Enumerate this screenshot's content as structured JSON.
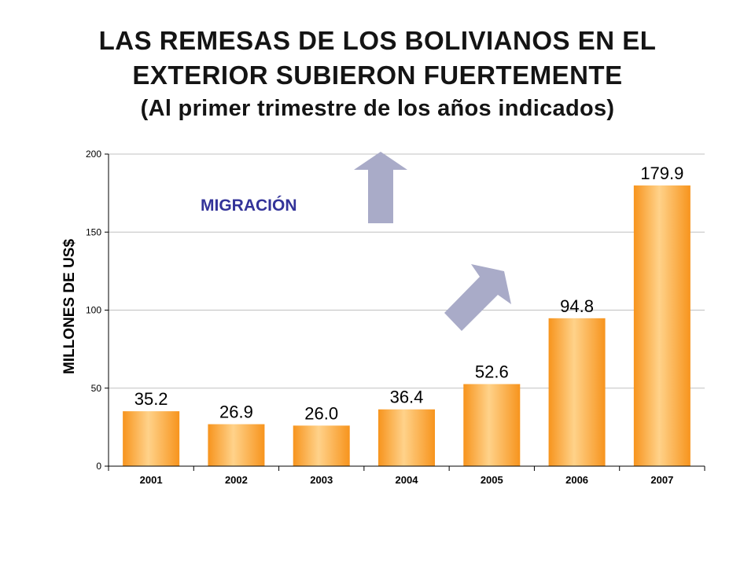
{
  "title_line1": "LAS REMESAS DE LOS BOLIVIANOS EN EL",
  "title_line2": "EXTERIOR SUBIERON FUERTEMENTE",
  "subtitle": "(Al primer trimestre de los años indicados)",
  "annotation": "MIGRACIÓN",
  "colors": {
    "bar_edge": "#F7941D",
    "bar_center": "#FFD28A",
    "arrow": "#A9ABC8",
    "annotation": "#333399",
    "grid": "#C0C0C0"
  },
  "chart_data": {
    "type": "bar",
    "categories": [
      "2001",
      "2002",
      "2003",
      "2004",
      "2005",
      "2006",
      "2007"
    ],
    "values": [
      35.2,
      26.9,
      26.0,
      36.4,
      52.6,
      94.8,
      179.9
    ],
    "data_labels": [
      "35.2",
      "26.9",
      "26.0",
      "36.4",
      "52.6",
      "94.8",
      "179.9"
    ],
    "ylabel": "MILLONES DE US$",
    "xlabel": "",
    "ylim": [
      0,
      200
    ],
    "yticks": [
      0,
      50,
      100,
      150,
      200
    ],
    "grid": true
  }
}
